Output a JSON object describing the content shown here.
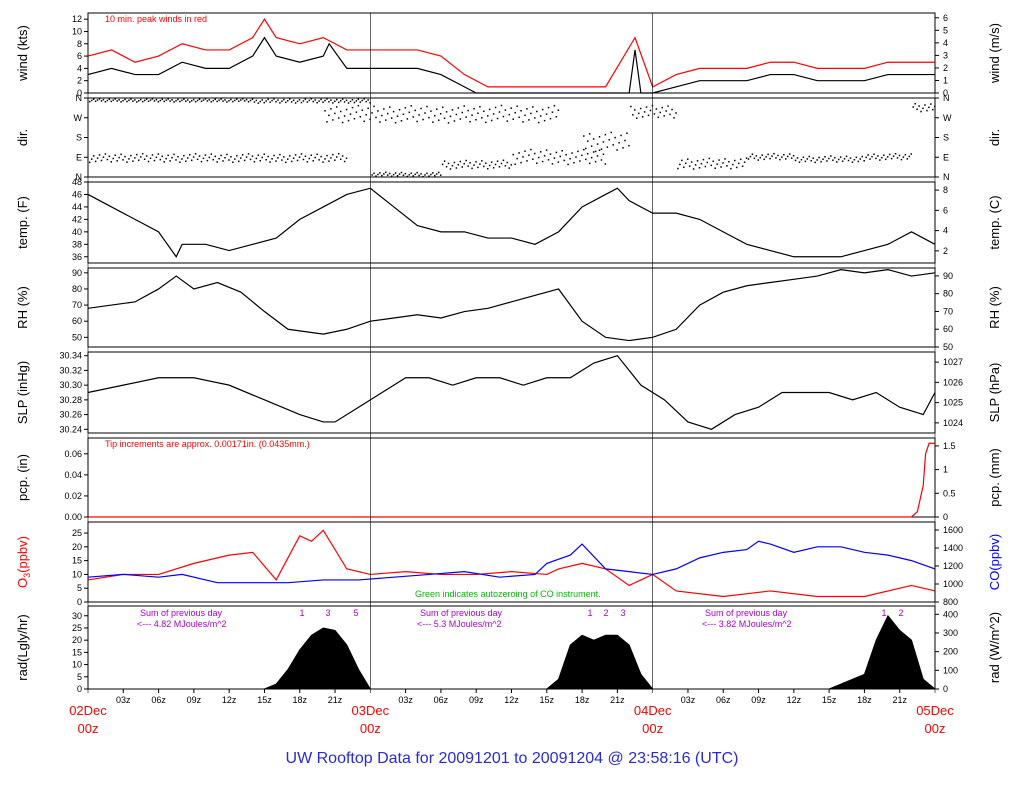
{
  "title": "UW Rooftop Data for 20091201  to  20091204 @ 23:58:16  (UTC)",
  "colors": {
    "red": "#ff0000",
    "blue": "#0000ff",
    "green": "#00bb00",
    "purple": "#aa00cc",
    "black": "#000000",
    "title": "#2a2ad8"
  },
  "x_axis": {
    "hour_ticks": [
      "03z",
      "06z",
      "09z",
      "12z",
      "15z",
      "18z",
      "21z",
      "03z",
      "06z",
      "09z",
      "12z",
      "15z",
      "18z",
      "21z",
      "03z",
      "06z",
      "09z",
      "12z",
      "15z",
      "18z",
      "21z"
    ],
    "day_labels": [
      {
        "date": "02Dec",
        "hour": "00z",
        "t": 0
      },
      {
        "date": "03Dec",
        "hour": "00z",
        "t": 24
      },
      {
        "date": "04Dec",
        "hour": "00z",
        "t": 48
      },
      {
        "date": "05Dec",
        "hour": "00z",
        "t": 72
      }
    ],
    "range_hours": [
      0,
      72
    ]
  },
  "chart_data": [
    {
      "type": "line",
      "ylabel_left": "wind (kts)",
      "ylabel_right": "wind (m/s)",
      "ylim": [
        0,
        13
      ],
      "yticks_left": [
        0,
        2,
        4,
        6,
        8,
        10,
        12
      ],
      "yticks_right": [
        "0",
        "1",
        "2",
        "3",
        "4",
        "5",
        "6"
      ],
      "note": "10 min. peak winds in red",
      "series": [
        {
          "color": "#000000",
          "x": [
            0,
            2,
            4,
            6,
            8,
            10,
            12,
            14,
            15,
            16,
            18,
            20,
            20.5,
            22,
            24,
            26,
            28,
            30,
            32,
            33,
            34,
            36,
            38,
            40,
            42,
            44,
            46,
            46.5,
            47,
            48,
            50,
            52,
            54,
            56,
            58,
            60,
            62,
            64,
            66,
            68,
            70,
            72
          ],
          "y": [
            3,
            4,
            3,
            3,
            5,
            4,
            4,
            6,
            9,
            6,
            5,
            6,
            8,
            4,
            4,
            4,
            4,
            3,
            1,
            0,
            0,
            0,
            0,
            0,
            0,
            0,
            0,
            7,
            0,
            0,
            1,
            2,
            2,
            2,
            3,
            3,
            2,
            2,
            2,
            3,
            3,
            3
          ]
        },
        {
          "color": "#ff0000",
          "x": [
            0,
            2,
            4,
            6,
            8,
            10,
            12,
            14,
            15,
            16,
            18,
            20,
            22,
            24,
            26,
            28,
            30,
            32,
            34,
            36,
            40,
            44,
            46.5,
            48,
            50,
            52,
            54,
            56,
            58,
            60,
            62,
            64,
            66,
            68,
            70,
            72
          ],
          "y": [
            6,
            7,
            5,
            6,
            8,
            7,
            7,
            9,
            12,
            9,
            8,
            9,
            7,
            7,
            7,
            7,
            6,
            3,
            1,
            1,
            1,
            1,
            9,
            1,
            3,
            4,
            4,
            4,
            5,
            5,
            4,
            4,
            4,
            5,
            5,
            5
          ]
        }
      ]
    },
    {
      "type": "scatter",
      "ylabel_left": "dir.",
      "ylabel_right": "dir.",
      "ylim": [
        0,
        360
      ],
      "ytick_labels": [
        "N",
        "E",
        "S",
        "W",
        "N"
      ]
    },
    {
      "type": "line",
      "ylabel_left": "temp. (F)",
      "ylabel_right": "temp. (C)",
      "ylim": [
        35,
        48
      ],
      "yticks_left": [
        36,
        38,
        40,
        42,
        44,
        46,
        48
      ],
      "yticks_right": [
        "2",
        "4",
        "6",
        "8"
      ],
      "series": [
        {
          "color": "#000000",
          "x": [
            0,
            2,
            4,
            6,
            7.5,
            8,
            10,
            12,
            14,
            16,
            18,
            20,
            22,
            24,
            26,
            28,
            30,
            32,
            34,
            36,
            38,
            40,
            42,
            44,
            45,
            46,
            48,
            50,
            52,
            54,
            56,
            58,
            60,
            62,
            64,
            66,
            68,
            70,
            71,
            72
          ],
          "y": [
            46,
            44,
            42,
            40,
            36,
            38,
            38,
            37,
            38,
            39,
            42,
            44,
            46,
            47,
            44,
            41,
            40,
            40,
            39,
            39,
            38,
            40,
            44,
            46,
            47,
            45,
            43,
            43,
            42,
            40,
            38,
            37,
            36,
            36,
            36,
            37,
            38,
            40,
            39,
            38
          ]
        }
      ]
    },
    {
      "type": "line",
      "ylabel_left": "RH (%)",
      "ylabel_right": "RH (%)",
      "ylim": [
        44,
        93
      ],
      "yticks_left": [
        50,
        60,
        70,
        80,
        90
      ],
      "yticks_right": [
        "50",
        "60",
        "70",
        "80",
        "90"
      ],
      "series": [
        {
          "color": "#000000",
          "x": [
            0,
            2,
            4,
            6,
            7.5,
            9,
            11,
            13,
            15,
            17,
            20,
            22,
            24,
            26,
            28,
            30,
            32,
            34,
            36,
            40,
            42,
            44,
            46,
            48,
            50,
            52,
            54,
            56,
            58,
            60,
            62,
            64,
            66,
            68,
            70,
            72
          ],
          "y": [
            68,
            70,
            72,
            80,
            88,
            80,
            84,
            78,
            66,
            55,
            52,
            55,
            60,
            62,
            64,
            62,
            66,
            68,
            72,
            80,
            60,
            50,
            48,
            50,
            55,
            70,
            78,
            82,
            84,
            86,
            88,
            92,
            90,
            92,
            88,
            90
          ]
        }
      ]
    },
    {
      "type": "line",
      "ylabel_left": "SLP (inHg)",
      "ylabel_right": "SLP (hPa)",
      "ylim": [
        30.235,
        30.345
      ],
      "yticks_left": [
        30.24,
        30.26,
        30.28,
        30.3,
        30.32,
        30.34
      ],
      "yticks_right": [
        "1024",
        "1025",
        "1026",
        "1027"
      ],
      "series": [
        {
          "color": "#000000",
          "x": [
            0,
            3,
            6,
            9,
            12,
            15,
            18,
            20,
            21,
            23,
            25,
            27,
            29,
            31,
            33,
            35,
            37,
            39,
            41,
            43,
            45,
            46,
            47,
            49,
            51,
            53,
            55,
            57,
            59,
            61,
            63,
            65,
            67,
            69,
            71,
            72
          ],
          "y": [
            30.29,
            30.3,
            30.31,
            30.31,
            30.3,
            30.28,
            30.26,
            30.25,
            30.25,
            30.27,
            30.29,
            30.31,
            30.31,
            30.3,
            30.31,
            30.31,
            30.3,
            30.31,
            30.31,
            30.33,
            30.34,
            30.32,
            30.3,
            30.28,
            30.25,
            30.24,
            30.26,
            30.27,
            30.29,
            30.29,
            30.29,
            30.28,
            30.29,
            30.27,
            30.26,
            30.29
          ]
        }
      ]
    },
    {
      "type": "line",
      "ylabel_left": "pcp. (in)",
      "ylabel_right": "pcp. (mm)",
      "ylim": [
        0,
        0.075
      ],
      "yticks_left": [
        0.0,
        0.02,
        0.04,
        0.06
      ],
      "yticks_right": [
        "0",
        "0.5",
        "1",
        "1.5"
      ],
      "note": "Tip increments are approx. 0.00171in. (0.0435mm.)",
      "series": [
        {
          "color": "#ff0000",
          "x": [
            0,
            70,
            70.5,
            71,
            71.2,
            71.5,
            72
          ],
          "y": [
            0,
            0,
            0.005,
            0.03,
            0.06,
            0.07,
            0.07
          ]
        }
      ]
    },
    {
      "type": "line",
      "ylabel_left": "O3(ppbv)",
      "ylabel_right": "CO(ppbv)",
      "ylim": [
        0,
        29
      ],
      "yticks_left": [
        0,
        5,
        10,
        15,
        20,
        25
      ],
      "yticks_right": [
        "800",
        "1000",
        "1200",
        "1400",
        "1600"
      ],
      "note": "Green indicates autozeroing of CO instrument.",
      "series": [
        {
          "name": "O3",
          "color": "#ff0000",
          "x": [
            0,
            3,
            6,
            9,
            12,
            14,
            16,
            18,
            19,
            20,
            22,
            24,
            27,
            30,
            33,
            36,
            39,
            40,
            42,
            44,
            46,
            48,
            50,
            54,
            58,
            62,
            66,
            70,
            72
          ],
          "y": [
            8,
            10,
            10,
            14,
            17,
            18,
            8,
            24,
            22,
            26,
            12,
            10,
            11,
            10,
            10,
            11,
            10,
            12,
            14,
            12,
            6,
            10,
            4,
            2,
            4,
            2,
            2,
            6,
            4
          ]
        },
        {
          "name": "CO",
          "color": "#0000ff",
          "x": [
            0,
            3,
            6,
            8,
            11,
            14,
            17,
            20,
            23,
            26,
            29,
            32,
            35,
            38,
            39,
            41,
            42,
            44,
            46,
            48,
            50,
            52,
            54,
            56,
            57,
            58,
            60,
            62,
            64,
            66,
            68,
            70,
            72
          ],
          "y": [
            9,
            10,
            9,
            10,
            7,
            7,
            7,
            8,
            8,
            9,
            10,
            11,
            9,
            10,
            14,
            17,
            21,
            12,
            11,
            10,
            12,
            16,
            18,
            19,
            22,
            21,
            18,
            20,
            20,
            18,
            17,
            15,
            12
          ]
        }
      ]
    },
    {
      "type": "area",
      "ylabel_left": "rad(Lgly/hr)",
      "ylabel_right": "rad (W/m^2)",
      "ylim": [
        0,
        34
      ],
      "yticks_left": [
        0,
        5,
        10,
        15,
        20,
        25,
        30
      ],
      "yticks_right": [
        "0",
        "100",
        "200",
        "300",
        "400"
      ],
      "annotations": [
        "Sum of previous day",
        "<--- 4.82 MJoules/m^2",
        "Sum of previous day",
        "<--- 5.3 MJoules/m^2",
        "Sum of previous day",
        "<--- 3.82 MJoules/m^2"
      ],
      "markers": [
        "1",
        "3",
        "5",
        "1",
        "2",
        "3",
        "1",
        "2"
      ],
      "series": [
        {
          "color": "#000000",
          "x": [
            15,
            16,
            17,
            18,
            19,
            20,
            21,
            22,
            23,
            24,
            39,
            40,
            41,
            42,
            43,
            44,
            45,
            46,
            47,
            48,
            63,
            64,
            65,
            66,
            67,
            68,
            69,
            70,
            71,
            72
          ],
          "y": [
            0,
            2,
            8,
            16,
            22,
            25,
            24,
            18,
            8,
            0,
            0,
            4,
            18,
            22,
            20,
            22,
            22,
            18,
            6,
            0,
            0,
            2,
            4,
            6,
            20,
            30,
            24,
            20,
            4,
            0
          ]
        }
      ]
    }
  ]
}
